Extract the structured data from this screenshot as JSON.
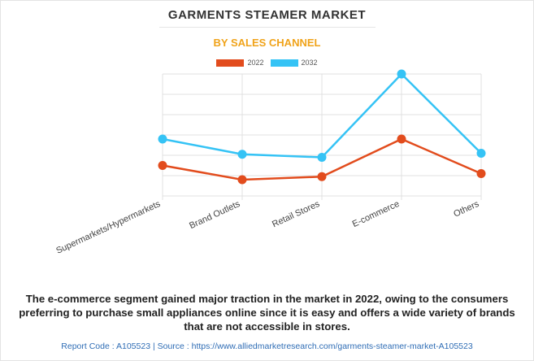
{
  "header": {
    "title": "GARMENTS STEAMER MARKET",
    "subtitle": "BY SALES CHANNEL"
  },
  "colors": {
    "subtitle": "#f0a31a",
    "series_2022": "#e24c1d",
    "series_2032": "#35c3f5",
    "grid": "#e0e0e0"
  },
  "chart_data": {
    "type": "line",
    "categories": [
      "Supermarkets/Hypermarkets",
      "Brand Outlets",
      "Retail Stores",
      "E-commerce",
      "Others"
    ],
    "series": [
      {
        "name": "2022",
        "values": [
          1.5,
          0.8,
          0.95,
          2.8,
          1.1
        ]
      },
      {
        "name": "2032",
        "values": [
          2.8,
          2.05,
          1.9,
          6.0,
          2.1
        ]
      }
    ],
    "ylim": [
      0,
      6
    ],
    "grid": true,
    "legend_position": "top-center",
    "y_tick_labels_shown": false
  },
  "caption": "The e-commerce segment gained major traction in the market in 2022, owing to the consumers preferring to purchase small appliances online since it is easy and offers a wide variety of brands that are not accessible in stores.",
  "footer": "Report Code : A105523  |  Source : https://www.alliedmarketresearch.com/garments-steamer-market-A105523"
}
